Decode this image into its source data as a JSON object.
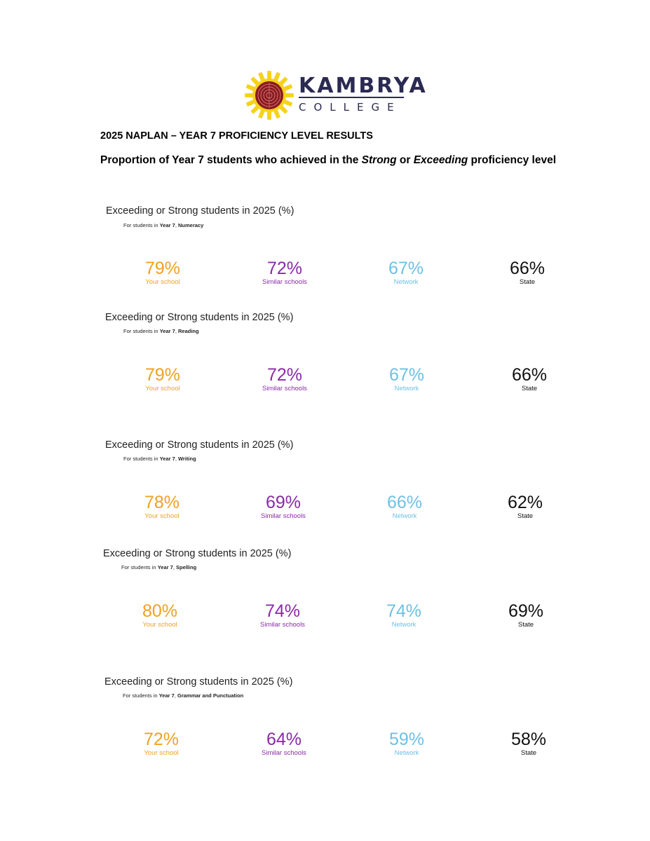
{
  "header": {
    "logo_name": "KAMBRYA",
    "logo_sub": "COLLEGE",
    "title": "2025 NAPLAN – YEAR 7 PROFICIENCY LEVEL RESULTS",
    "subtitle_pre": "Proportion of Year 7 students who achieved in the ",
    "subtitle_strong": "Strong",
    "subtitle_or": " or ",
    "subtitle_exceeding": "Exceeding",
    "subtitle_post": " proficiency level"
  },
  "panels": [
    {
      "title": "Exceeding or Strong students in 2025 (%)",
      "sub_prefix": "For students in ",
      "year": "Year 7",
      "sep": ", ",
      "domain": "Numeracy",
      "stats": [
        {
          "value": "79%",
          "label": "Your school"
        },
        {
          "value": "72%",
          "label": "Similar schools"
        },
        {
          "value": "67%",
          "label": "Network"
        },
        {
          "value": "66%",
          "label": "State"
        }
      ]
    },
    {
      "title": "Exceeding or Strong students in 2025 (%)",
      "sub_prefix": "For students in ",
      "year": "Year 7",
      "sep": ", ",
      "domain": "Reading",
      "stats": [
        {
          "value": "79%",
          "label": "Your school"
        },
        {
          "value": "72%",
          "label": "Similar schools"
        },
        {
          "value": "67%",
          "label": "Network"
        },
        {
          "value": "66%",
          "label": "State"
        }
      ]
    },
    {
      "title": "Exceeding or Strong students in 2025 (%)",
      "sub_prefix": "For students in ",
      "year": "Year 7",
      "sep": ", ",
      "domain": "Writing",
      "stats": [
        {
          "value": "78%",
          "label": "Your school"
        },
        {
          "value": "69%",
          "label": "Similar schools"
        },
        {
          "value": "66%",
          "label": "Network"
        },
        {
          "value": "62%",
          "label": "State"
        }
      ]
    },
    {
      "title": "Exceeding or Strong students in 2025 (%)",
      "sub_prefix": "For students in ",
      "year": "Year 7",
      "sep": ", ",
      "domain": "Spelling",
      "stats": [
        {
          "value": "80%",
          "label": "Your school"
        },
        {
          "value": "74%",
          "label": "Similar schools"
        },
        {
          "value": "74%",
          "label": "Network"
        },
        {
          "value": "69%",
          "label": "State"
        }
      ]
    },
    {
      "title": "Exceeding or Strong students in 2025 (%)",
      "sub_prefix": "For students in ",
      "year": "Year 7",
      "sep": ", ",
      "domain": "Grammar and Punctuation",
      "stats": [
        {
          "value": "72%",
          "label": "Your school"
        },
        {
          "value": "64%",
          "label": "Similar schools"
        },
        {
          "value": "59%",
          "label": "Network"
        },
        {
          "value": "58%",
          "label": "State"
        }
      ]
    }
  ],
  "colors": {
    "your_school": "#f0a024",
    "similar_schools": "#8a2aa8",
    "network": "#6ec0e4",
    "state": "#111111",
    "logo_text": "#2b2a52",
    "logo_sun": "#f6d21c",
    "logo_seal": "#8b1a1e"
  }
}
